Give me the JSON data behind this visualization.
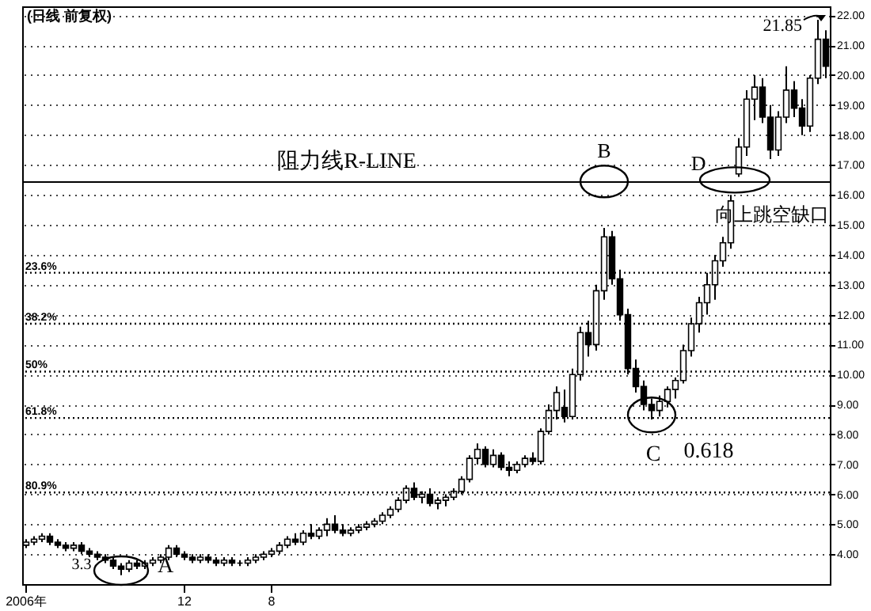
{
  "chart_data": {
    "type": "candlestick",
    "title": "(日线 前复权)",
    "color": "#000000",
    "categories": [
      "2006年",
      null,
      null,
      null,
      null,
      null,
      null,
      null,
      null,
      null,
      null,
      null,
      null,
      null,
      null,
      null,
      null,
      null,
      null,
      null,
      "12",
      null,
      null,
      null,
      null,
      null,
      null,
      null,
      null,
      null,
      null,
      "8",
      null,
      null,
      null,
      null,
      null,
      null,
      null,
      null,
      null,
      null,
      null,
      null,
      null,
      null,
      null,
      null,
      null,
      null,
      null,
      null,
      null,
      null,
      null,
      null,
      null,
      null,
      null,
      null,
      null,
      null,
      null,
      null,
      null,
      null,
      null,
      null,
      null,
      null,
      null,
      null,
      null,
      null,
      null,
      null,
      null,
      null,
      null,
      null,
      null,
      null,
      null,
      null,
      null,
      null,
      null,
      null,
      null,
      null,
      null,
      null,
      null,
      null,
      null,
      null,
      null,
      null,
      null,
      null,
      null,
      null
    ],
    "ohlc": [
      [
        4.3,
        4.5,
        4.2,
        4.4
      ],
      [
        4.4,
        4.6,
        4.3,
        4.5
      ],
      [
        4.5,
        4.7,
        4.4,
        4.6
      ],
      [
        4.6,
        4.7,
        4.3,
        4.4
      ],
      [
        4.4,
        4.5,
        4.2,
        4.3
      ],
      [
        4.3,
        4.4,
        4.1,
        4.2
      ],
      [
        4.2,
        4.4,
        4.1,
        4.3
      ],
      [
        4.3,
        4.4,
        4.0,
        4.1
      ],
      [
        4.1,
        4.2,
        3.9,
        4.0
      ],
      [
        4.0,
        4.1,
        3.8,
        3.9
      ],
      [
        3.9,
        4.0,
        3.7,
        3.8
      ],
      [
        3.8,
        3.9,
        3.5,
        3.6
      ],
      [
        3.6,
        3.7,
        3.3,
        3.5
      ],
      [
        3.5,
        3.8,
        3.4,
        3.7
      ],
      [
        3.7,
        3.8,
        3.5,
        3.6
      ],
      [
        3.6,
        3.8,
        3.5,
        3.7
      ],
      [
        3.7,
        3.9,
        3.6,
        3.8
      ],
      [
        3.8,
        4.0,
        3.7,
        3.9
      ],
      [
        3.9,
        4.3,
        3.8,
        4.2
      ],
      [
        4.2,
        4.3,
        3.9,
        4.0
      ],
      [
        4.0,
        4.1,
        3.8,
        3.9
      ],
      [
        3.9,
        4.0,
        3.7,
        3.8
      ],
      [
        3.8,
        4.0,
        3.7,
        3.9
      ],
      [
        3.9,
        4.0,
        3.7,
        3.8
      ],
      [
        3.8,
        3.9,
        3.6,
        3.7
      ],
      [
        3.7,
        3.9,
        3.6,
        3.8
      ],
      [
        3.8,
        3.9,
        3.6,
        3.7
      ],
      [
        3.7,
        3.8,
        3.6,
        3.7
      ],
      [
        3.7,
        3.9,
        3.6,
        3.8
      ],
      [
        3.8,
        4.0,
        3.7,
        3.9
      ],
      [
        3.9,
        4.1,
        3.8,
        4.0
      ],
      [
        4.0,
        4.2,
        3.9,
        4.1
      ],
      [
        4.1,
        4.4,
        4.0,
        4.3
      ],
      [
        4.3,
        4.6,
        4.2,
        4.5
      ],
      [
        4.5,
        4.7,
        4.3,
        4.4
      ],
      [
        4.4,
        4.8,
        4.3,
        4.7
      ],
      [
        4.7,
        5.0,
        4.5,
        4.6
      ],
      [
        4.6,
        4.9,
        4.5,
        4.8
      ],
      [
        4.8,
        5.2,
        4.6,
        5.0
      ],
      [
        5.0,
        5.3,
        4.7,
        4.8
      ],
      [
        4.8,
        5.0,
        4.6,
        4.7
      ],
      [
        4.7,
        4.9,
        4.6,
        4.8
      ],
      [
        4.8,
        5.0,
        4.7,
        4.9
      ],
      [
        4.9,
        5.1,
        4.8,
        5.0
      ],
      [
        5.0,
        5.2,
        4.9,
        5.1
      ],
      [
        5.1,
        5.4,
        5.0,
        5.3
      ],
      [
        5.3,
        5.6,
        5.2,
        5.5
      ],
      [
        5.5,
        5.9,
        5.4,
        5.8
      ],
      [
        5.8,
        6.3,
        5.7,
        6.2
      ],
      [
        6.2,
        6.4,
        5.8,
        5.9
      ],
      [
        5.9,
        6.1,
        5.7,
        6.0
      ],
      [
        6.0,
        6.2,
        5.6,
        5.7
      ],
      [
        5.7,
        5.9,
        5.5,
        5.8
      ],
      [
        5.8,
        6.0,
        5.6,
        5.9
      ],
      [
        5.9,
        6.2,
        5.8,
        6.1
      ],
      [
        6.1,
        6.6,
        6.0,
        6.5
      ],
      [
        6.5,
        7.3,
        6.4,
        7.2
      ],
      [
        7.2,
        7.7,
        7.0,
        7.5
      ],
      [
        7.5,
        7.6,
        6.9,
        7.0
      ],
      [
        7.0,
        7.5,
        6.9,
        7.3
      ],
      [
        7.3,
        7.4,
        6.8,
        6.9
      ],
      [
        6.9,
        7.1,
        6.6,
        6.8
      ],
      [
        6.8,
        7.1,
        6.7,
        7.0
      ],
      [
        7.0,
        7.3,
        6.9,
        7.2
      ],
      [
        7.2,
        7.4,
        7.0,
        7.1
      ],
      [
        7.1,
        8.2,
        7.0,
        8.1
      ],
      [
        8.1,
        9.0,
        8.0,
        8.8
      ],
      [
        8.8,
        9.6,
        8.5,
        9.4
      ],
      [
        8.9,
        9.5,
        8.4,
        8.6
      ],
      [
        8.6,
        10.2,
        8.5,
        10.0
      ],
      [
        10.0,
        11.6,
        9.8,
        11.4
      ],
      [
        11.4,
        11.8,
        10.6,
        11.0
      ],
      [
        11.0,
        13.0,
        10.8,
        12.8
      ],
      [
        12.8,
        14.9,
        12.5,
        14.6
      ],
      [
        14.6,
        14.8,
        13.0,
        13.2
      ],
      [
        13.2,
        13.5,
        11.8,
        12.0
      ],
      [
        12.0,
        12.2,
        10.0,
        10.2
      ],
      [
        10.2,
        10.5,
        9.4,
        9.6
      ],
      [
        9.6,
        9.8,
        8.8,
        9.0
      ],
      [
        9.0,
        9.2,
        8.5,
        8.8
      ],
      [
        8.8,
        9.3,
        8.6,
        9.1
      ],
      [
        9.1,
        9.6,
        8.9,
        9.5
      ],
      [
        9.5,
        9.9,
        9.2,
        9.8
      ],
      [
        9.8,
        11.0,
        9.7,
        10.8
      ],
      [
        10.8,
        11.9,
        10.6,
        11.7
      ],
      [
        11.7,
        12.6,
        11.4,
        12.4
      ],
      [
        12.4,
        13.4,
        12.0,
        13.0
      ],
      [
        13.0,
        14.0,
        12.5,
        13.8
      ],
      [
        13.8,
        14.6,
        13.6,
        14.4
      ],
      [
        14.4,
        16.0,
        14.2,
        15.8
      ],
      [
        16.7,
        17.9,
        16.6,
        17.6
      ],
      [
        17.6,
        19.5,
        17.3,
        19.2
      ],
      [
        19.2,
        20.0,
        18.5,
        19.6
      ],
      [
        19.6,
        19.9,
        18.4,
        18.6
      ],
      [
        18.6,
        19.0,
        17.2,
        17.5
      ],
      [
        17.5,
        18.8,
        17.3,
        18.6
      ],
      [
        18.6,
        20.3,
        18.4,
        19.5
      ],
      [
        19.5,
        19.8,
        18.6,
        18.9
      ],
      [
        18.9,
        19.2,
        18.0,
        18.3
      ],
      [
        18.3,
        20.0,
        18.1,
        19.9
      ],
      [
        19.9,
        21.85,
        19.7,
        21.2
      ],
      [
        21.2,
        21.5,
        19.9,
        20.3
      ]
    ],
    "ylim": [
      3.0,
      22.3
    ],
    "yticks": [
      {
        "value": 4,
        "label": "4.00"
      },
      {
        "value": 5,
        "label": "5.00"
      },
      {
        "value": 6,
        "label": "6.00"
      },
      {
        "value": 7,
        "label": "7.00"
      },
      {
        "value": 8,
        "label": "8.00"
      },
      {
        "value": 9,
        "label": "9.00"
      },
      {
        "value": 10,
        "label": "10.00"
      },
      {
        "value": 11,
        "label": "11.00"
      },
      {
        "value": 12,
        "label": "12.00"
      },
      {
        "value": 13,
        "label": "13.00"
      },
      {
        "value": 14,
        "label": "14.00"
      },
      {
        "value": 15,
        "label": "15.00"
      },
      {
        "value": 16,
        "label": "16.00"
      },
      {
        "value": 17,
        "label": "17.00"
      },
      {
        "value": 18,
        "label": "18.00"
      },
      {
        "value": 19,
        "label": "19.00"
      },
      {
        "value": 20,
        "label": "20.00"
      },
      {
        "value": 21,
        "label": "21.00"
      },
      {
        "value": 22,
        "label": "22.00"
      }
    ],
    "grid": "y",
    "ref_lines": [
      {
        "axis": "y",
        "value": 16.43,
        "label": "阻力线R-LINE",
        "line_style": "solid"
      },
      {
        "axis": "y",
        "value": 13.4,
        "line_style": "dotted"
      },
      {
        "axis": "y",
        "value": 11.7,
        "line_style": "dotted"
      },
      {
        "axis": "y",
        "value": 10.1,
        "line_style": "dotted"
      },
      {
        "axis": "y",
        "value": 8.55,
        "line_style": "dotted"
      },
      {
        "axis": "y",
        "value": 6.06,
        "line_style": "dotted"
      }
    ],
    "annotations": [
      "B",
      "D",
      "向上跳空缺口",
      "C",
      "0.618",
      "A",
      "3.3",
      "21.85",
      {
        "text": "23.6%",
        "y": 13.4
      },
      {
        "text": "38.2%",
        "y": 11.7
      },
      {
        "text": "50%",
        "y": 10.1
      },
      {
        "text": "61.8%",
        "y": 8.55
      },
      {
        "text": "80.9%",
        "y": 6.06
      }
    ]
  }
}
